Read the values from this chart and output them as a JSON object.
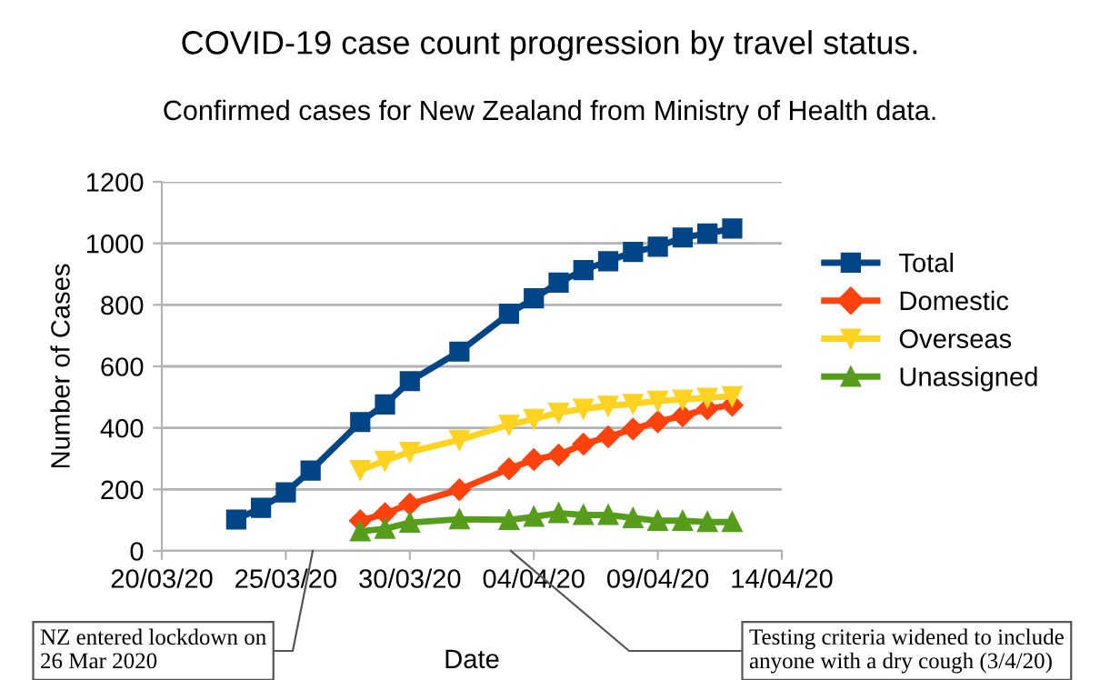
{
  "chart_data": {
    "type": "line",
    "title": "COVID-19 case count progression by travel status.",
    "subtitle": "Confirmed cases for New Zealand from Ministry of Health data.",
    "xlabel": "Date",
    "ylabel": "Number of Cases",
    "xlim": [
      "2020-03-20",
      "2020-04-14"
    ],
    "xticks": [
      {
        "value": "2020-03-20",
        "label": "20/03/20"
      },
      {
        "value": "2020-03-25",
        "label": "25/03/20"
      },
      {
        "value": "2020-03-30",
        "label": "30/03/20"
      },
      {
        "value": "2020-04-04",
        "label": "04/04/20"
      },
      {
        "value": "2020-04-09",
        "label": "09/04/20"
      },
      {
        "value": "2020-04-14",
        "label": "14/04/20"
      }
    ],
    "ylim": [
      0,
      1200
    ],
    "yticks": [
      0,
      200,
      400,
      600,
      800,
      1000,
      1200
    ],
    "grid": "y",
    "legend": "right",
    "series": [
      {
        "name": "Total",
        "color": "#004586",
        "marker": "square",
        "x": [
          "2020-03-23",
          "2020-03-24",
          "2020-03-25",
          "2020-03-26",
          "2020-03-28",
          "2020-03-29",
          "2020-03-30",
          "2020-04-01",
          "2020-04-03",
          "2020-04-04",
          "2020-04-05",
          "2020-04-06",
          "2020-04-07",
          "2020-04-08",
          "2020-04-09",
          "2020-04-10",
          "2020-04-11",
          "2020-04-12"
        ],
        "values": [
          102,
          140,
          190,
          261,
          419,
          476,
          552,
          648,
          771,
          821,
          872,
          913,
          942,
          972,
          989,
          1019,
          1032,
          1048
        ]
      },
      {
        "name": "Domestic",
        "color": "#ff420e",
        "marker": "diamond",
        "x": [
          "2020-03-28",
          "2020-03-29",
          "2020-03-30",
          "2020-04-01",
          "2020-04-03",
          "2020-04-04",
          "2020-04-05",
          "2020-04-06",
          "2020-04-07",
          "2020-04-08",
          "2020-04-09",
          "2020-04-10",
          "2020-04-11",
          "2020-04-12"
        ],
        "values": [
          98,
          121,
          152,
          199,
          267,
          297,
          312,
          347,
          371,
          396,
          420,
          439,
          462,
          474
        ]
      },
      {
        "name": "Overseas",
        "color": "#ffd320",
        "marker": "triangle_down",
        "x": [
          "2020-03-28",
          "2020-03-29",
          "2020-03-30",
          "2020-04-01",
          "2020-04-03",
          "2020-04-04",
          "2020-04-05",
          "2020-04-06",
          "2020-04-07",
          "2020-04-08",
          "2020-04-09",
          "2020-04-10",
          "2020-04-11",
          "2020-04-12"
        ],
        "values": [
          263,
          293,
          322,
          361,
          410,
          429,
          449,
          462,
          472,
          478,
          488,
          492,
          498,
          503
        ]
      },
      {
        "name": "Unassigned",
        "color": "#579d1c",
        "marker": "triangle",
        "x": [
          "2020-03-28",
          "2020-03-29",
          "2020-03-30",
          "2020-04-01",
          "2020-04-03",
          "2020-04-04",
          "2020-04-05",
          "2020-04-06",
          "2020-04-07",
          "2020-04-08",
          "2020-04-09",
          "2020-04-10",
          "2020-04-11",
          "2020-04-12"
        ],
        "values": [
          64,
          72,
          92,
          103,
          101,
          111,
          123,
          117,
          117,
          107,
          98,
          98,
          94,
          94
        ]
      }
    ],
    "annotations": [
      "NZ entered lockdown on\n26 Mar 2020",
      "Testing criteria widened to include\nanyone with a dry cough (3/4/20)"
    ]
  }
}
